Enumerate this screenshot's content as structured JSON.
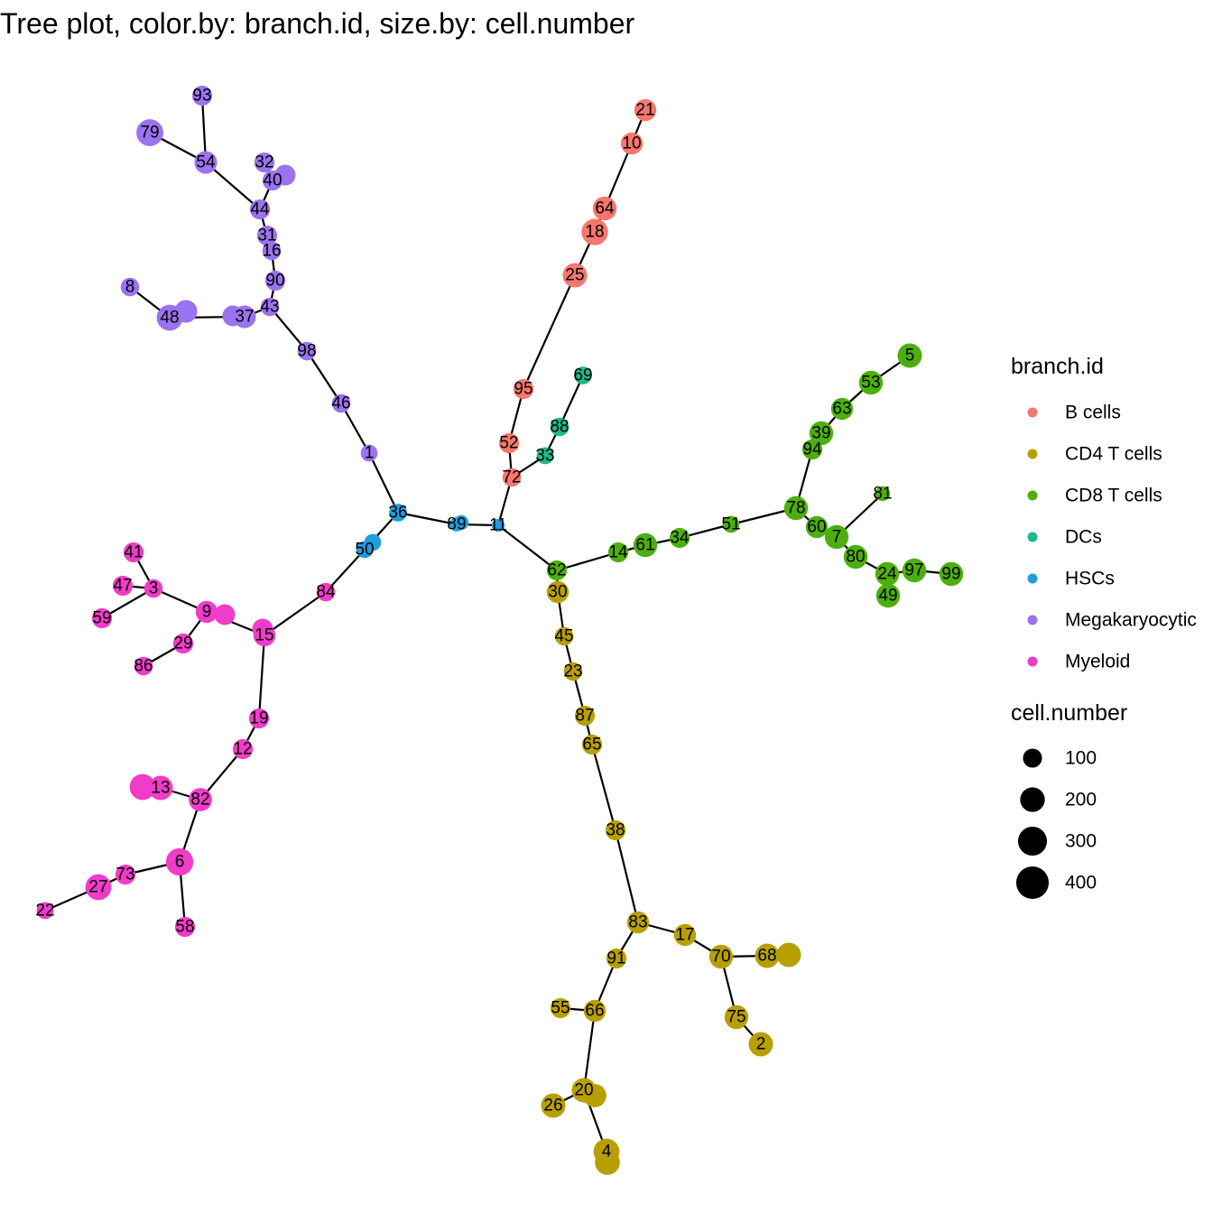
{
  "title": "Tree plot, color.by: branch.id, size.by: cell.number",
  "chart_data": {
    "type": "tree",
    "title": "Tree plot, color.by: branch.id, size.by: cell.number",
    "color_by": "branch.id",
    "size_by": "cell.number",
    "branches": [
      {
        "name": "B cells",
        "color": "#F8766D"
      },
      {
        "name": "CD4 T cells",
        "color": "#B79F00"
      },
      {
        "name": "CD8 T cells",
        "color": "#4DAF0D"
      },
      {
        "name": "DCs",
        "color": "#1FB88A"
      },
      {
        "name": "HSCs",
        "color": "#1E9EDB"
      },
      {
        "name": "Megakaryocytic",
        "color": "#9B72F0"
      },
      {
        "name": "Myeloid",
        "color": "#F03CC8"
      }
    ],
    "size_legend": {
      "title": "cell.number",
      "values": [
        100,
        200,
        300,
        400
      ]
    },
    "legend_position": "right",
    "nodes": [
      {
        "id": "11",
        "branch": "HSCs",
        "cells": 25
      },
      {
        "id": "89",
        "branch": "HSCs",
        "cells": 35
      },
      {
        "id": "36",
        "branch": "HSCs",
        "cells": 70
      },
      {
        "id": "50",
        "branch": "HSCs",
        "cells": 60
      },
      {
        "id": "1",
        "branch": "Megakaryocytic",
        "cells": 60
      },
      {
        "id": "46",
        "branch": "Megakaryocytic",
        "cells": 80
      },
      {
        "id": "98",
        "branch": "Megakaryocytic",
        "cells": 80
      },
      {
        "id": "43",
        "branch": "Megakaryocytic",
        "cells": 80
      },
      {
        "id": "90",
        "branch": "Megakaryocytic",
        "cells": 100
      },
      {
        "id": "16",
        "branch": "Megakaryocytic",
        "cells": 80
      },
      {
        "id": "31",
        "branch": "Megakaryocytic",
        "cells": 100
      },
      {
        "id": "44",
        "branch": "Megakaryocytic",
        "cells": 100
      },
      {
        "id": "40",
        "branch": "Megakaryocytic",
        "cells": 100
      },
      {
        "id": "32",
        "branch": "Megakaryocytic",
        "cells": 100
      },
      {
        "id": "54",
        "branch": "Megakaryocytic",
        "cells": 140
      },
      {
        "id": "93",
        "branch": "Megakaryocytic",
        "cells": 100
      },
      {
        "id": "79",
        "branch": "Megakaryocytic",
        "cells": 220
      },
      {
        "id": "37",
        "branch": "Megakaryocytic",
        "cells": 140
      },
      {
        "id": "48",
        "branch": "Megakaryocytic",
        "cells": 200
      },
      {
        "id": "8",
        "branch": "Megakaryocytic",
        "cells": 80
      },
      {
        "id": "84",
        "branch": "Myeloid",
        "cells": 80
      },
      {
        "id": "15",
        "branch": "Myeloid",
        "cells": 130
      },
      {
        "id": "9",
        "branch": "Myeloid",
        "cells": 130
      },
      {
        "id": "3",
        "branch": "Myeloid",
        "cells": 80
      },
      {
        "id": "41",
        "branch": "Myeloid",
        "cells": 100
      },
      {
        "id": "47",
        "branch": "Myeloid",
        "cells": 100
      },
      {
        "id": "59",
        "branch": "Myeloid",
        "cells": 100
      },
      {
        "id": "29",
        "branch": "Myeloid",
        "cells": 100
      },
      {
        "id": "86",
        "branch": "Myeloid",
        "cells": 80
      },
      {
        "id": "19",
        "branch": "Myeloid",
        "cells": 100
      },
      {
        "id": "12",
        "branch": "Myeloid",
        "cells": 100
      },
      {
        "id": "82",
        "branch": "Myeloid",
        "cells": 150
      },
      {
        "id": "13",
        "branch": "Myeloid",
        "cells": 170
      },
      {
        "id": "6",
        "branch": "Myeloid",
        "cells": 230
      },
      {
        "id": "58",
        "branch": "Myeloid",
        "cells": 100
      },
      {
        "id": "73",
        "branch": "Myeloid",
        "cells": 100
      },
      {
        "id": "27",
        "branch": "Myeloid",
        "cells": 200
      },
      {
        "id": "22",
        "branch": "Myeloid",
        "cells": 60
      },
      {
        "id": "72",
        "branch": "B cells",
        "cells": 80
      },
      {
        "id": "52",
        "branch": "B cells",
        "cells": 100
      },
      {
        "id": "95",
        "branch": "B cells",
        "cells": 100
      },
      {
        "id": "25",
        "branch": "B cells",
        "cells": 170
      },
      {
        "id": "18",
        "branch": "B cells",
        "cells": 210
      },
      {
        "id": "64",
        "branch": "B cells",
        "cells": 160
      },
      {
        "id": "10",
        "branch": "B cells",
        "cells": 130
      },
      {
        "id": "21",
        "branch": "B cells",
        "cells": 130
      },
      {
        "id": "33",
        "branch": "DCs",
        "cells": 60
      },
      {
        "id": "88",
        "branch": "DCs",
        "cells": 80
      },
      {
        "id": "69",
        "branch": "DCs",
        "cells": 70
      },
      {
        "id": "62",
        "branch": "CD8 T cells",
        "cells": 100
      },
      {
        "id": "14",
        "branch": "CD8 T cells",
        "cells": 100
      },
      {
        "id": "61",
        "branch": "CD8 T cells",
        "cells": 160
      },
      {
        "id": "34",
        "branch": "CD8 T cells",
        "cells": 100
      },
      {
        "id": "51",
        "branch": "CD8 T cells",
        "cells": 60
      },
      {
        "id": "78",
        "branch": "CD8 T cells",
        "cells": 160
      },
      {
        "id": "60",
        "branch": "CD8 T cells",
        "cells": 130
      },
      {
        "id": "7",
        "branch": "CD8 T cells",
        "cells": 160
      },
      {
        "id": "80",
        "branch": "CD8 T cells",
        "cells": 160
      },
      {
        "id": "24",
        "branch": "CD8 T cells",
        "cells": 160
      },
      {
        "id": "97",
        "branch": "CD8 T cells",
        "cells": 160
      },
      {
        "id": "99",
        "branch": "CD8 T cells",
        "cells": 160
      },
      {
        "id": "49",
        "branch": "CD8 T cells",
        "cells": 160
      },
      {
        "id": "81",
        "branch": "CD8 T cells",
        "cells": 40
      },
      {
        "id": "94",
        "branch": "CD8 T cells",
        "cells": 100
      },
      {
        "id": "39",
        "branch": "CD8 T cells",
        "cells": 160
      },
      {
        "id": "63",
        "branch": "CD8 T cells",
        "cells": 130
      },
      {
        "id": "53",
        "branch": "CD8 T cells",
        "cells": 160
      },
      {
        "id": "5",
        "branch": "CD8 T cells",
        "cells": 170
      },
      {
        "id": "30",
        "branch": "CD4 T cells",
        "cells": 130
      },
      {
        "id": "45",
        "branch": "CD4 T cells",
        "cells": 80
      },
      {
        "id": "23",
        "branch": "CD4 T cells",
        "cells": 80
      },
      {
        "id": "87",
        "branch": "CD4 T cells",
        "cells": 100
      },
      {
        "id": "65",
        "branch": "CD4 T cells",
        "cells": 100
      },
      {
        "id": "38",
        "branch": "CD4 T cells",
        "cells": 100
      },
      {
        "id": "83",
        "branch": "CD4 T cells",
        "cells": 130
      },
      {
        "id": "17",
        "branch": "CD4 T cells",
        "cells": 130
      },
      {
        "id": "70",
        "branch": "CD4 T cells",
        "cells": 160
      },
      {
        "id": "68",
        "branch": "CD4 T cells",
        "cells": 170
      },
      {
        "id": "75",
        "branch": "CD4 T cells",
        "cells": 160
      },
      {
        "id": "2",
        "branch": "CD4 T cells",
        "cells": 170
      },
      {
        "id": "91",
        "branch": "CD4 T cells",
        "cells": 100
      },
      {
        "id": "66",
        "branch": "CD4 T cells",
        "cells": 130
      },
      {
        "id": "55",
        "branch": "CD4 T cells",
        "cells": 100
      },
      {
        "id": "20",
        "branch": "CD4 T cells",
        "cells": 170
      },
      {
        "id": "26",
        "branch": "CD4 T cells",
        "cells": 170
      },
      {
        "id": "4",
        "branch": "CD4 T cells",
        "cells": 200
      }
    ],
    "edges": [
      [
        "11",
        "89"
      ],
      [
        "89",
        "36"
      ],
      [
        "36",
        "50"
      ],
      [
        "36",
        "1"
      ],
      [
        "1",
        "46"
      ],
      [
        "46",
        "98"
      ],
      [
        "98",
        "43"
      ],
      [
        "43",
        "90"
      ],
      [
        "90",
        "16"
      ],
      [
        "16",
        "31"
      ],
      [
        "31",
        "44"
      ],
      [
        "44",
        "40"
      ],
      [
        "44",
        "54"
      ],
      [
        "54",
        "93"
      ],
      [
        "54",
        "79"
      ],
      [
        "43",
        "37"
      ],
      [
        "37",
        "48"
      ],
      [
        "48",
        "8"
      ],
      [
        "50",
        "84"
      ],
      [
        "84",
        "15"
      ],
      [
        "15",
        "9"
      ],
      [
        "9",
        "3"
      ],
      [
        "3",
        "41"
      ],
      [
        "3",
        "47"
      ],
      [
        "3",
        "59"
      ],
      [
        "9",
        "29"
      ],
      [
        "29",
        "86"
      ],
      [
        "15",
        "19"
      ],
      [
        "19",
        "12"
      ],
      [
        "12",
        "82"
      ],
      [
        "82",
        "13"
      ],
      [
        "82",
        "6"
      ],
      [
        "6",
        "58"
      ],
      [
        "6",
        "73"
      ],
      [
        "73",
        "27"
      ],
      [
        "27",
        "22"
      ],
      [
        "11",
        "72"
      ],
      [
        "72",
        "52"
      ],
      [
        "52",
        "95"
      ],
      [
        "95",
        "25"
      ],
      [
        "25",
        "18"
      ],
      [
        "18",
        "64"
      ],
      [
        "64",
        "10"
      ],
      [
        "10",
        "21"
      ],
      [
        "72",
        "33"
      ],
      [
        "33",
        "88"
      ],
      [
        "88",
        "69"
      ],
      [
        "11",
        "62"
      ],
      [
        "62",
        "14"
      ],
      [
        "14",
        "61"
      ],
      [
        "61",
        "34"
      ],
      [
        "34",
        "51"
      ],
      [
        "51",
        "78"
      ],
      [
        "78",
        "60"
      ],
      [
        "60",
        "7"
      ],
      [
        "7",
        "80"
      ],
      [
        "80",
        "24"
      ],
      [
        "24",
        "97"
      ],
      [
        "97",
        "99"
      ],
      [
        "24",
        "49"
      ],
      [
        "7",
        "81"
      ],
      [
        "78",
        "94"
      ],
      [
        "94",
        "39"
      ],
      [
        "39",
        "63"
      ],
      [
        "63",
        "53"
      ],
      [
        "53",
        "5"
      ],
      [
        "62",
        "30"
      ],
      [
        "30",
        "45"
      ],
      [
        "45",
        "23"
      ],
      [
        "23",
        "87"
      ],
      [
        "87",
        "65"
      ],
      [
        "65",
        "38"
      ],
      [
        "38",
        "83"
      ],
      [
        "83",
        "17"
      ],
      [
        "17",
        "70"
      ],
      [
        "70",
        "68"
      ],
      [
        "70",
        "75"
      ],
      [
        "75",
        "2"
      ],
      [
        "83",
        "91"
      ],
      [
        "91",
        "66"
      ],
      [
        "66",
        "55"
      ],
      [
        "66",
        "20"
      ],
      [
        "20",
        "26"
      ],
      [
        "20",
        "4"
      ]
    ]
  }
}
